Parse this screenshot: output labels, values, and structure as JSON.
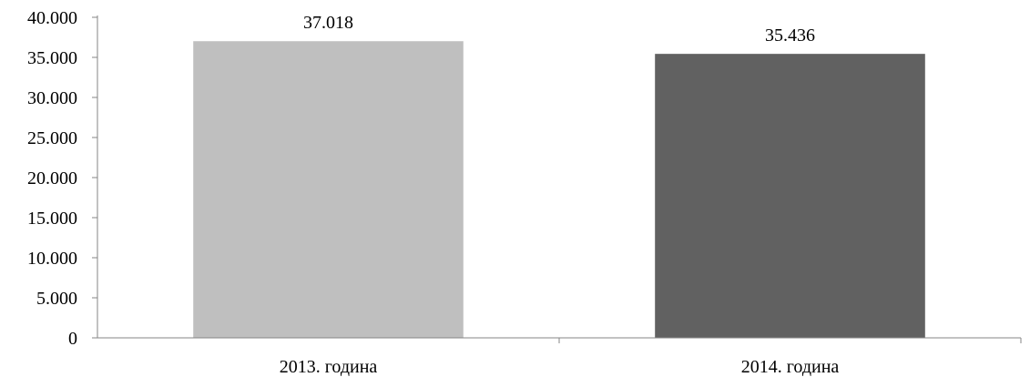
{
  "chart_data": {
    "type": "bar",
    "categories": [
      "2013. година",
      "2014. година"
    ],
    "values": [
      37018,
      35436
    ],
    "value_labels": [
      "37.018",
      "35.436"
    ],
    "bar_colors": [
      "#bfbfbf",
      "#616161"
    ],
    "ylim": [
      0,
      40000
    ],
    "yticks": [
      0,
      5000,
      10000,
      15000,
      20000,
      25000,
      30000,
      35000,
      40000
    ],
    "ytick_labels": [
      "0",
      "5.000",
      "10.000",
      "15.000",
      "20.000",
      "25.000",
      "30.000",
      "35.000",
      "40.000"
    ],
    "grid": false,
    "legend": "none",
    "title": "",
    "xlabel": "",
    "ylabel": ""
  }
}
